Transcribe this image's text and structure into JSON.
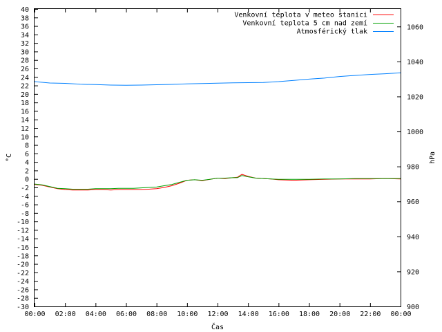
{
  "chart_data": {
    "type": "line",
    "xlabel": "Čas",
    "ylabel": "°C",
    "y2label": "hPa",
    "x_ticks": [
      "00:00",
      "02:00",
      "04:00",
      "06:00",
      "08:00",
      "10:00",
      "12:00",
      "14:00",
      "16:00",
      "18:00",
      "20:00",
      "22:00",
      "00:00"
    ],
    "x_range_hours": [
      0,
      24
    ],
    "ylim": [
      -30,
      40
    ],
    "y_step": 2,
    "y2lim": [
      900,
      1070
    ],
    "y2_ticks": [
      900,
      920,
      940,
      960,
      980,
      1000,
      1020,
      1040,
      1060
    ],
    "grid": false,
    "legend_position": "top-right",
    "series": [
      {
        "name": "Venkovní teplota v meteo stanici",
        "color": "#ff0000",
        "axis": "left",
        "x": [
          0,
          0.5,
          1,
          1.5,
          2,
          2.5,
          3,
          3.5,
          4,
          4.5,
          5,
          5.5,
          6,
          6.5,
          7,
          7.5,
          8,
          8.5,
          9,
          9.5,
          10,
          10.5,
          11,
          11.5,
          12,
          12.5,
          13,
          13.3,
          13.6,
          14,
          14.5,
          15,
          15.5,
          16,
          17,
          18,
          19,
          20,
          21,
          22,
          23,
          24
        ],
        "values": [
          -1.3,
          -1.5,
          -1.9,
          -2.3,
          -2.5,
          -2.6,
          -2.6,
          -2.6,
          -2.5,
          -2.5,
          -2.6,
          -2.5,
          -2.5,
          -2.5,
          -2.5,
          -2.4,
          -2.3,
          -2.0,
          -1.6,
          -1.0,
          -0.3,
          -0.2,
          -0.4,
          -0.1,
          0.2,
          0.1,
          0.3,
          0.4,
          1.1,
          0.6,
          0.2,
          0.1,
          0.0,
          -0.2,
          -0.3,
          -0.2,
          -0.1,
          0.0,
          0.0,
          0.0,
          0.1,
          0.0
        ]
      },
      {
        "name": "Venkovní teplota 5 cm nad zemí",
        "color": "#00a000",
        "axis": "left",
        "x": [
          0,
          0.5,
          1,
          1.5,
          2,
          2.5,
          3,
          3.5,
          4,
          4.5,
          5,
          5.5,
          6,
          6.5,
          7,
          7.5,
          8,
          8.5,
          9,
          9.5,
          10,
          10.5,
          11,
          11.5,
          12,
          12.5,
          13,
          13.3,
          13.6,
          14,
          14.5,
          15,
          15.5,
          16,
          17,
          18,
          19,
          20,
          21,
          22,
          23,
          24
        ],
        "values": [
          -1.2,
          -1.4,
          -1.8,
          -2.2,
          -2.3,
          -2.4,
          -2.4,
          -2.4,
          -2.3,
          -2.3,
          -2.3,
          -2.2,
          -2.2,
          -2.2,
          -2.1,
          -2.0,
          -1.9,
          -1.6,
          -1.3,
          -0.8,
          -0.3,
          -0.2,
          -0.3,
          -0.1,
          0.2,
          0.2,
          0.3,
          0.3,
          0.8,
          0.5,
          0.2,
          0.1,
          0.0,
          -0.1,
          -0.1,
          -0.1,
          0.0,
          0.0,
          0.1,
          0.1,
          0.1,
          0.1
        ]
      },
      {
        "name": "Atmosférický tlak",
        "color": "#0080ff",
        "axis": "right",
        "x": [
          0,
          1,
          2,
          3,
          4,
          5,
          6,
          7,
          8,
          9,
          10,
          11,
          12,
          13,
          14,
          15,
          16,
          17,
          18,
          19,
          20,
          21,
          22,
          23,
          24
        ],
        "values": [
          1028.5,
          1027.7,
          1027.5,
          1027.0,
          1026.8,
          1026.5,
          1026.4,
          1026.5,
          1026.7,
          1026.9,
          1027.2,
          1027.4,
          1027.6,
          1027.8,
          1027.9,
          1028.0,
          1028.5,
          1029.2,
          1029.9,
          1030.5,
          1031.4,
          1032.0,
          1032.6,
          1033.0,
          1033.5
        ]
      }
    ]
  }
}
